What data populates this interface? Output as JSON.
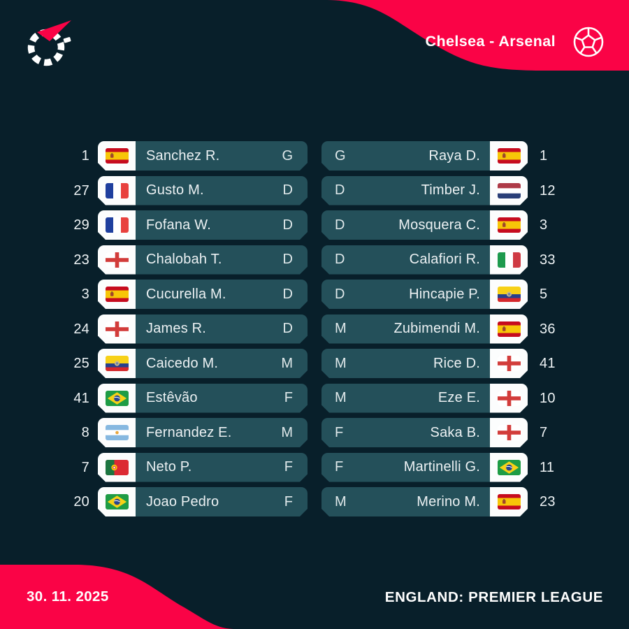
{
  "header": {
    "match_title": "Chelsea - Arsenal",
    "logo_icon": "flashscore-logo",
    "ball_icon": "soccer-ball"
  },
  "footer": {
    "date": "30. 11. 2025",
    "competition": "ENGLAND: PREMIER LEAGUE"
  },
  "colors": {
    "background": "#081f2a",
    "accent_red": "#fa0346",
    "row_teal": "#24505a",
    "flag_panel": "#fcfdfd",
    "text": "#ffffff"
  },
  "lineups": {
    "home": {
      "players": [
        {
          "number": "1",
          "country": "spain",
          "name": "Sanchez R.",
          "position": "G"
        },
        {
          "number": "27",
          "country": "france",
          "name": "Gusto M.",
          "position": "D"
        },
        {
          "number": "29",
          "country": "france",
          "name": "Fofana W.",
          "position": "D"
        },
        {
          "number": "23",
          "country": "england",
          "name": "Chalobah T.",
          "position": "D"
        },
        {
          "number": "3",
          "country": "spain",
          "name": "Cucurella M.",
          "position": "D"
        },
        {
          "number": "24",
          "country": "england",
          "name": "James R.",
          "position": "D"
        },
        {
          "number": "25",
          "country": "ecuador",
          "name": "Caicedo M.",
          "position": "M"
        },
        {
          "number": "41",
          "country": "brazil",
          "name": "Estêvão",
          "position": "F"
        },
        {
          "number": "8",
          "country": "argentina",
          "name": "Fernandez E.",
          "position": "M"
        },
        {
          "number": "7",
          "country": "portugal",
          "name": "Neto P.",
          "position": "F"
        },
        {
          "number": "20",
          "country": "brazil",
          "name": "Joao Pedro",
          "position": "F"
        }
      ]
    },
    "away": {
      "players": [
        {
          "number": "1",
          "country": "spain",
          "name": "Raya D.",
          "position": "G"
        },
        {
          "number": "12",
          "country": "netherlands",
          "name": "Timber J.",
          "position": "D"
        },
        {
          "number": "3",
          "country": "spain",
          "name": "Mosquera C.",
          "position": "D"
        },
        {
          "number": "33",
          "country": "italy",
          "name": "Calafiori R.",
          "position": "D"
        },
        {
          "number": "5",
          "country": "ecuador",
          "name": "Hincapie P.",
          "position": "D"
        },
        {
          "number": "36",
          "country": "spain",
          "name": "Zubimendi M.",
          "position": "M"
        },
        {
          "number": "41",
          "country": "england",
          "name": "Rice D.",
          "position": "M"
        },
        {
          "number": "10",
          "country": "england",
          "name": "Eze E.",
          "position": "M"
        },
        {
          "number": "7",
          "country": "england",
          "name": "Saka B.",
          "position": "F"
        },
        {
          "number": "11",
          "country": "brazil",
          "name": "Martinelli G.",
          "position": "F"
        },
        {
          "number": "23",
          "country": "spain",
          "name": "Merino M.",
          "position": "M"
        }
      ]
    }
  }
}
